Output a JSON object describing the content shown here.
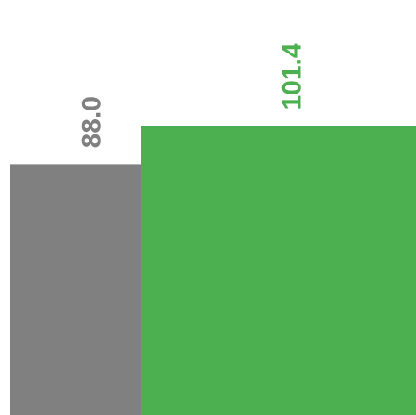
{
  "chart_data": {
    "type": "bar",
    "categories": [
      "",
      ""
    ],
    "values": [
      88.0,
      101.4
    ],
    "value_labels": [
      "88.0",
      "101.4"
    ],
    "colors": [
      "#808080",
      "#4caf50"
    ],
    "title": "",
    "xlabel": "",
    "ylabel": "",
    "ylim": [
      0,
      170
    ],
    "grid": false,
    "legend": "none"
  }
}
